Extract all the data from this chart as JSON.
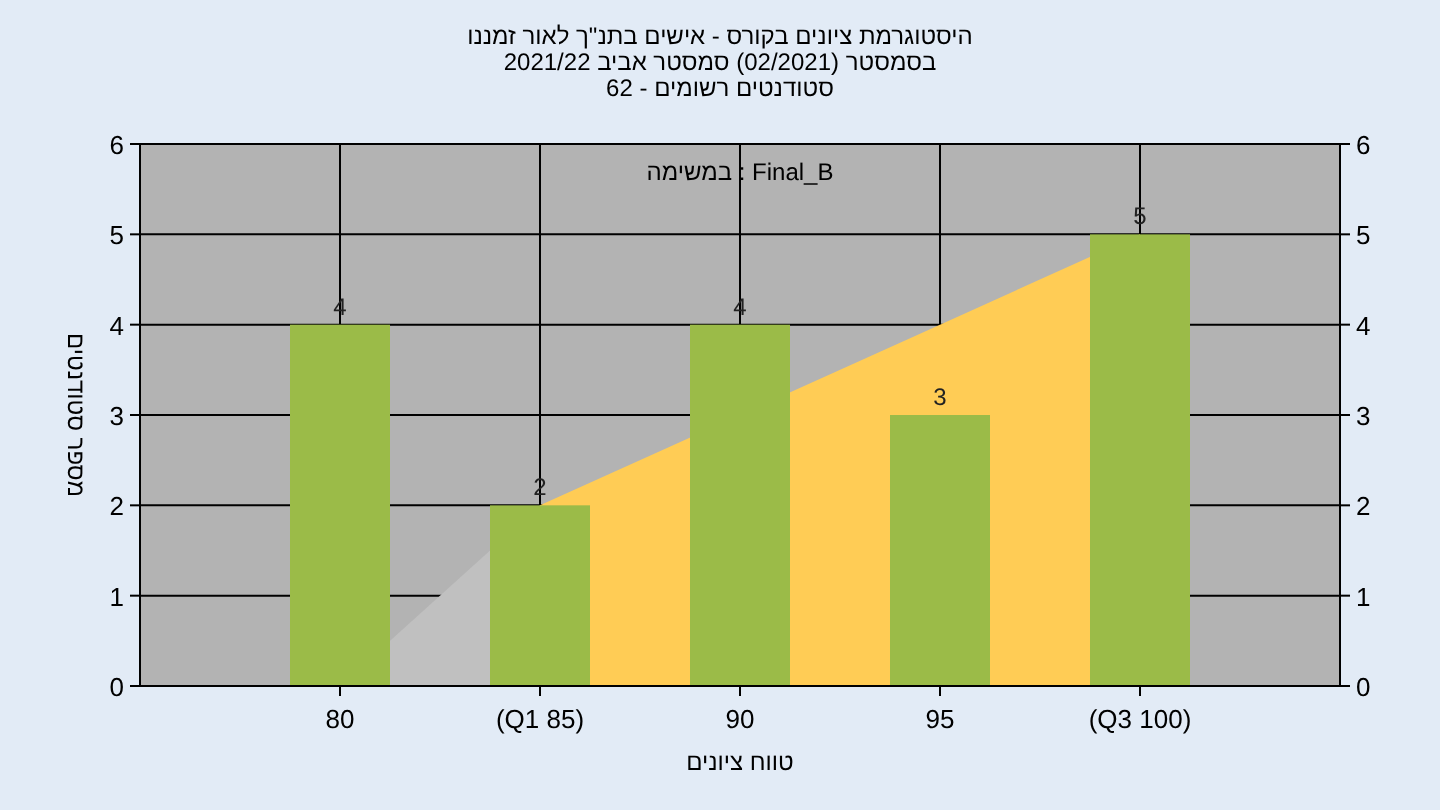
{
  "chart_data": {
    "type": "bar",
    "title": "היסטוגרמת ציונים בקורס - אישים בתנ\"ך לאור זמננו",
    "subtitle": "בסמסטר  (02/2021)  סמסטר אביב 2021/22",
    "xlabel": "טווח ציונים",
    "ylabel": "מספר סטודנטים",
    "annotations": [
      "סטודנטים רשומים - 62",
      "במשימה : Final_B"
    ],
    "categories": [
      "80",
      "(Q1 85)",
      "90",
      "95",
      "(Q3 100)"
    ],
    "series": [
      {
        "type": "area",
        "color": "#c0c0c0",
        "values": [
          0,
          2,
          null,
          null,
          null
        ]
      },
      {
        "type": "area",
        "color": "#ffcc55",
        "values": [
          null,
          2,
          null,
          4,
          5
        ]
      },
      {
        "color": "#9bbb48",
        "values": [
          4,
          2,
          4,
          3,
          5
        ],
        "value_labels": [
          "4",
          "2",
          "4",
          "3",
          "5"
        ]
      }
    ],
    "grid": true,
    "ylim": [
      0,
      6
    ],
    "yticks": [
      0,
      1,
      2,
      3,
      4,
      5,
      6
    ],
    "y2lim": [
      0,
      6
    ],
    "y2ticks": [
      0,
      1,
      2,
      3,
      4,
      5,
      6
    ]
  }
}
